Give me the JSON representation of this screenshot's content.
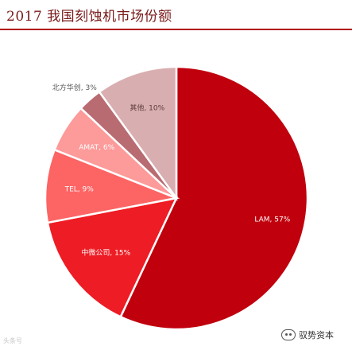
{
  "chart_data": {
    "type": "pie",
    "title": "2017 我国刻蚀机市场份额",
    "slices": [
      {
        "label": "LAM, 57%",
        "value": 57,
        "color": "#c0000d"
      },
      {
        "label": "中微公司, 15%",
        "value": 15,
        "color": "#ee1c24"
      },
      {
        "label": "TEL, 9%",
        "value": 9,
        "color": "#fd6464"
      },
      {
        "label": "AMAT, 6%",
        "value": 6,
        "color": "#fd9a9a"
      },
      {
        "label": "北方华创, 3%",
        "value": 3,
        "color": "#b96b72"
      },
      {
        "label": "其他, 10%",
        "value": 10,
        "color": "#d9aeb0"
      }
    ],
    "legend": "none",
    "grid": false
  },
  "watermarks": {
    "left": "头条号",
    "right": "驭势资本"
  }
}
